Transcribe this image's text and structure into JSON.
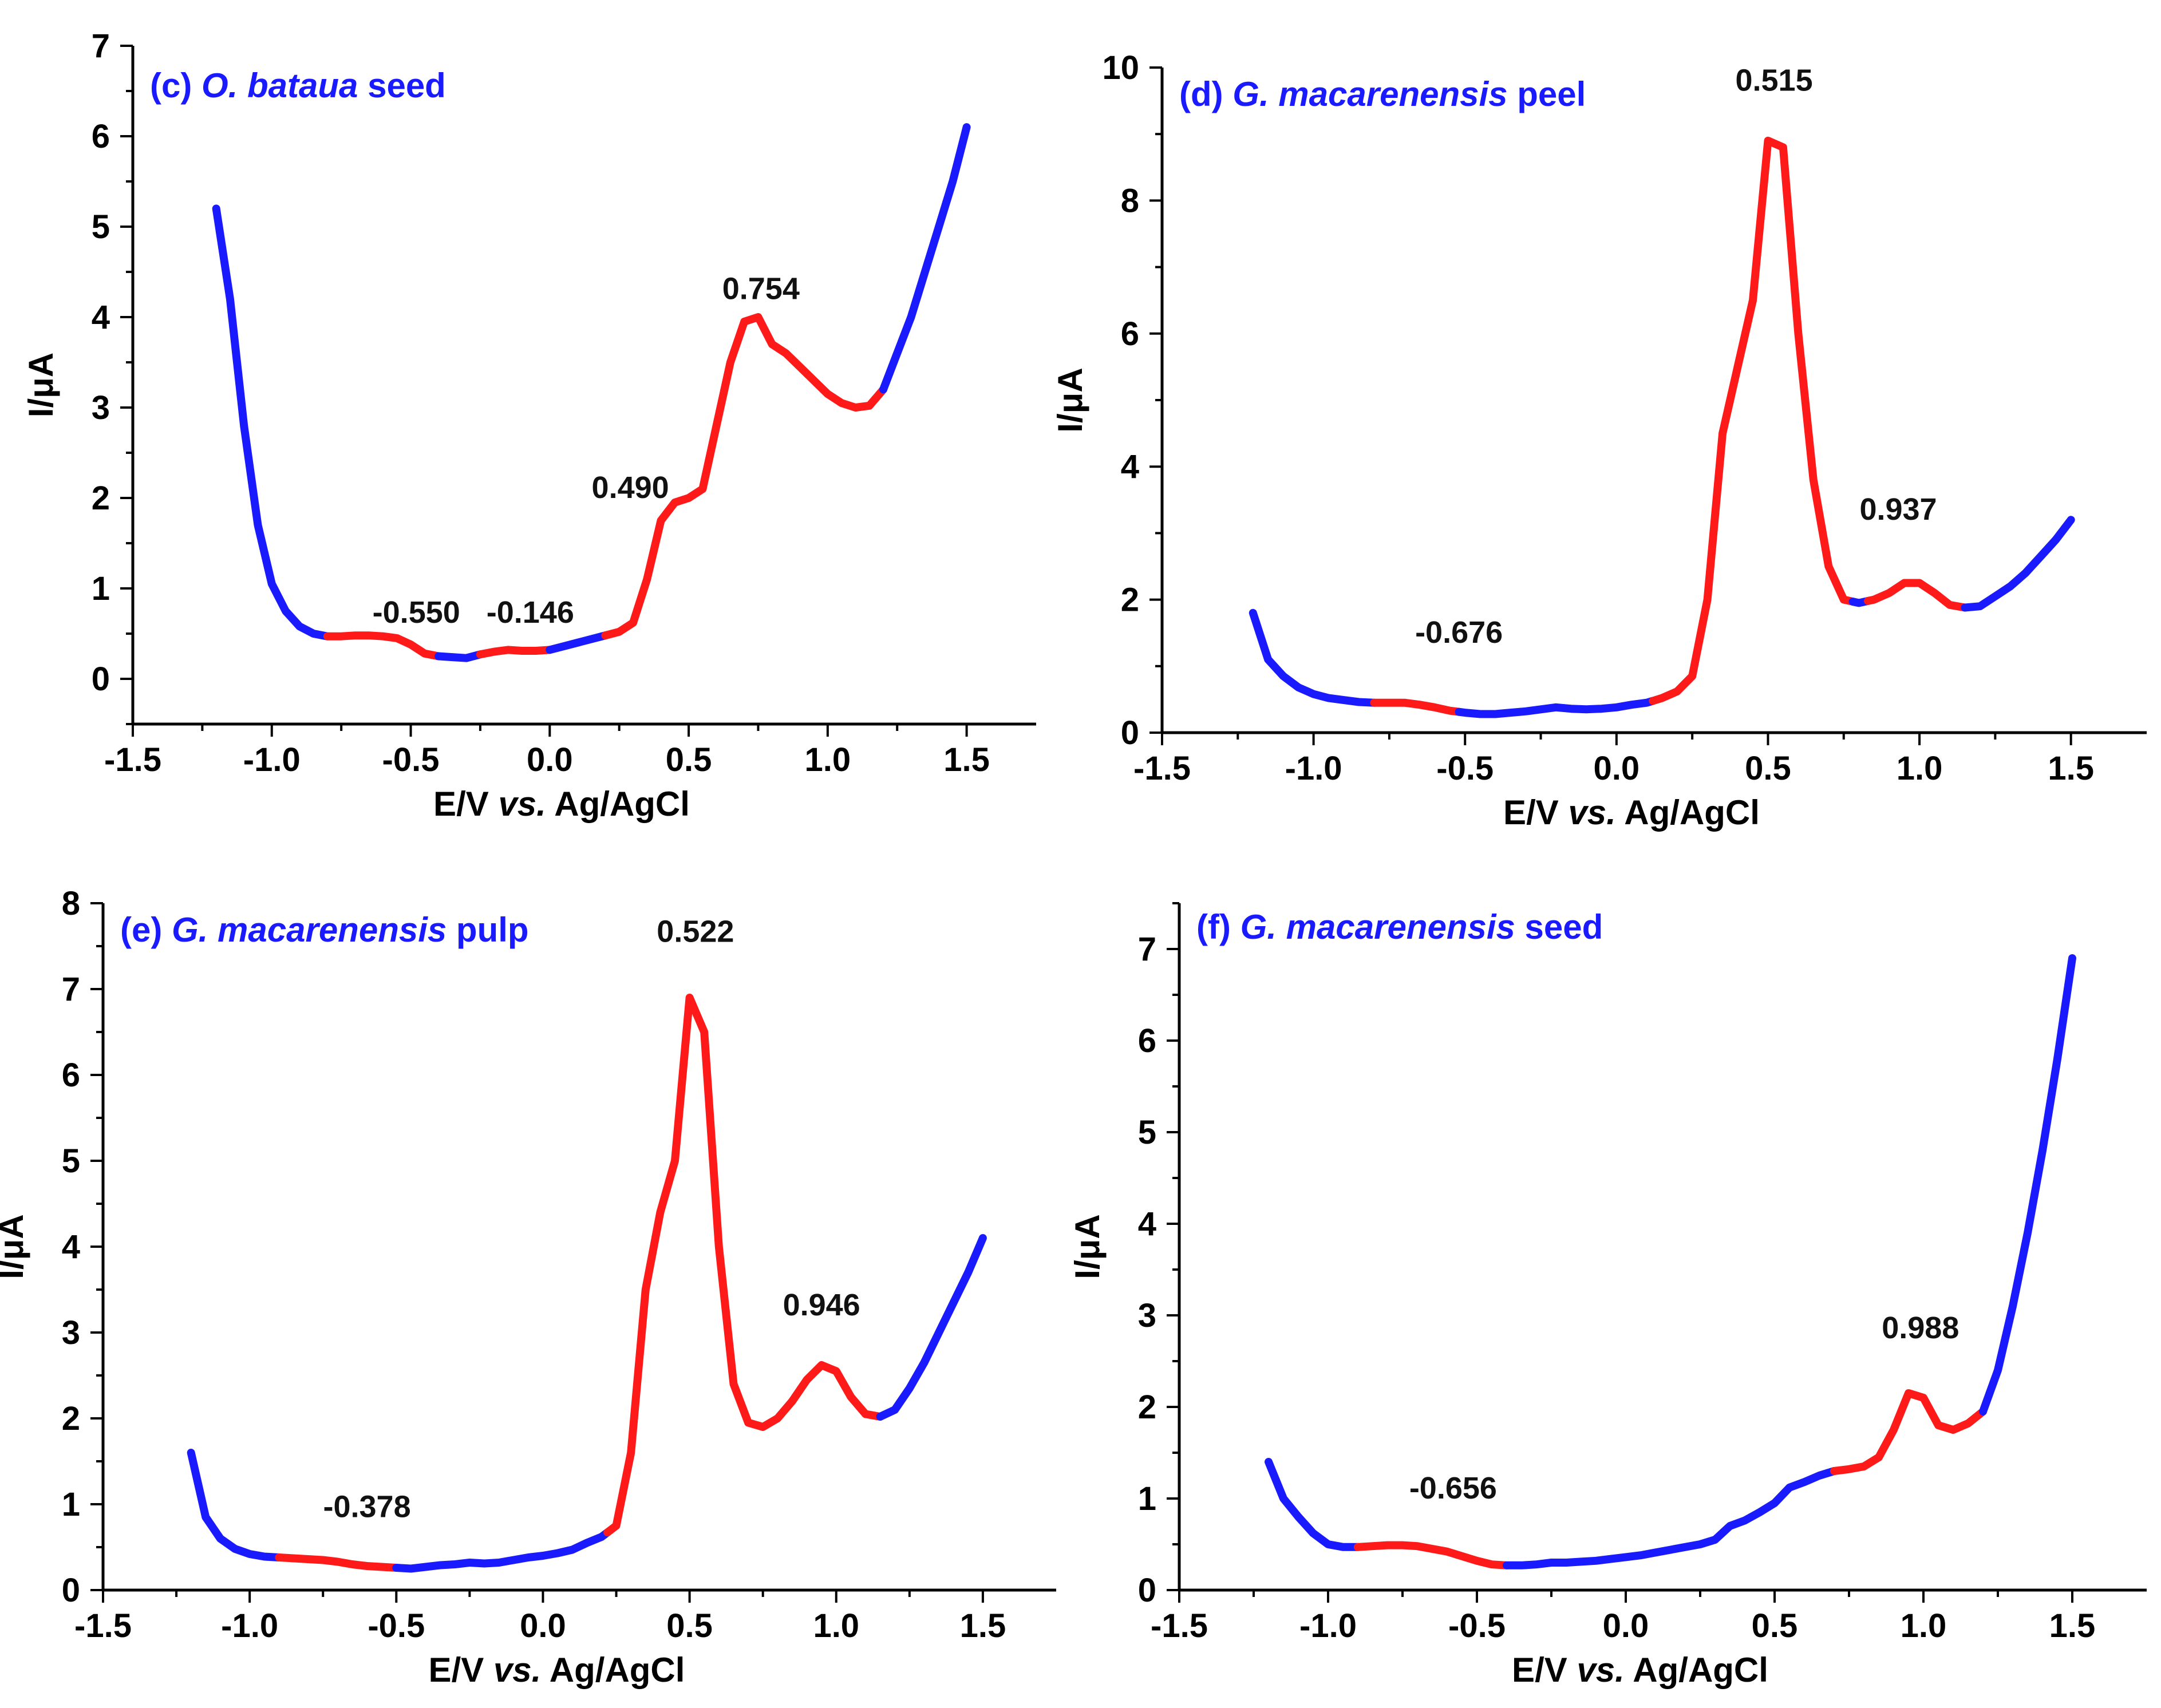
{
  "colors": {
    "blue": "#1a1aff",
    "red": "#ff1a1a",
    "axis": "#000000"
  },
  "chart_data": [
    {
      "id": "c",
      "type": "line",
      "title_prefix": "(c) ",
      "title_italic": "O. bataua",
      "title_suffix": " seed",
      "xlabel_pre": "E/V ",
      "xlabel_it": "vs.",
      "xlabel_post": " Ag/AgCl",
      "ylabel": "I/μA",
      "xlim": [
        -1.5,
        1.75
      ],
      "ylim": [
        -0.5,
        7
      ],
      "xticks": [
        -1.5,
        -1.0,
        -0.5,
        0.0,
        0.5,
        1.0,
        1.5
      ],
      "xtick_labels": [
        "-1.5",
        "-1.0",
        "-0.5",
        "0.0",
        "0.5",
        "1.0",
        "1.5"
      ],
      "yticks": [
        0,
        1,
        2,
        3,
        4,
        5,
        6,
        7
      ],
      "ytick_labels": [
        "0",
        "1",
        "2",
        "3",
        "4",
        "5",
        "6",
        "7"
      ],
      "x": [
        -1.2,
        -1.15,
        -1.1,
        -1.05,
        -1.0,
        -0.95,
        -0.9,
        -0.85,
        -0.8,
        -0.75,
        -0.7,
        -0.65,
        -0.6,
        -0.55,
        -0.5,
        -0.45,
        -0.4,
        -0.35,
        -0.3,
        -0.25,
        -0.2,
        -0.15,
        -0.1,
        -0.05,
        0.0,
        0.05,
        0.1,
        0.15,
        0.2,
        0.25,
        0.3,
        0.35,
        0.4,
        0.45,
        0.5,
        0.55,
        0.6,
        0.65,
        0.7,
        0.75,
        0.8,
        0.85,
        0.9,
        0.95,
        1.0,
        1.05,
        1.1,
        1.15,
        1.2,
        1.25,
        1.3,
        1.35,
        1.4,
        1.45,
        1.5
      ],
      "y": [
        5.2,
        4.2,
        2.8,
        1.7,
        1.05,
        0.75,
        0.58,
        0.5,
        0.47,
        0.47,
        0.48,
        0.48,
        0.47,
        0.45,
        0.38,
        0.28,
        0.25,
        0.24,
        0.23,
        0.27,
        0.3,
        0.32,
        0.31,
        0.31,
        0.32,
        0.36,
        0.4,
        0.44,
        0.48,
        0.52,
        0.62,
        1.1,
        1.75,
        1.95,
        2.0,
        2.1,
        2.8,
        3.5,
        3.95,
        4.0,
        3.7,
        3.6,
        3.45,
        3.3,
        3.15,
        3.05,
        3.0,
        3.02,
        3.2,
        3.6,
        4.0,
        4.5,
        5.0,
        5.5,
        6.1
      ],
      "segments": [
        {
          "color": "blue",
          "x_range": [
            -1.2,
            -0.8
          ]
        },
        {
          "color": "red",
          "x_range": [
            -0.8,
            -0.4
          ]
        },
        {
          "color": "blue",
          "x_range": [
            -0.4,
            -0.25
          ]
        },
        {
          "color": "red",
          "x_range": [
            -0.25,
            0.0
          ]
        },
        {
          "color": "blue",
          "x_range": [
            0.0,
            0.2
          ]
        },
        {
          "color": "red",
          "x_range": [
            0.2,
            1.2
          ]
        },
        {
          "color": "blue",
          "x_range": [
            1.2,
            1.5
          ]
        }
      ],
      "annotations": [
        {
          "text": "-0.550",
          "x": -0.48,
          "y": 0.62
        },
        {
          "text": "-0.146",
          "x": -0.07,
          "y": 0.62
        },
        {
          "text": "0.490",
          "x": 0.29,
          "y": 2.0
        },
        {
          "text": "0.754",
          "x": 0.76,
          "y": 4.2
        }
      ]
    },
    {
      "id": "d",
      "type": "line",
      "title_prefix": "(d) ",
      "title_italic": "G. macarenensis",
      "title_suffix": " peel",
      "xlabel_pre": "E/V ",
      "xlabel_it": "vs.",
      "xlabel_post": " Ag/AgCl",
      "ylabel": "I/μA",
      "xlim": [
        -1.5,
        1.75
      ],
      "ylim": [
        0,
        10
      ],
      "xticks": [
        -1.5,
        -1.0,
        -0.5,
        0.0,
        0.5,
        1.0,
        1.5
      ],
      "xtick_labels": [
        "-1.5",
        "-1.0",
        "-0.5",
        "0.0",
        "0.5",
        "1.0",
        "1.5"
      ],
      "yticks": [
        0,
        2,
        4,
        6,
        8,
        10
      ],
      "ytick_labels": [
        "0",
        "2",
        "4",
        "6",
        "8",
        "10"
      ],
      "x": [
        -1.2,
        -1.15,
        -1.1,
        -1.05,
        -1.0,
        -0.95,
        -0.9,
        -0.85,
        -0.8,
        -0.75,
        -0.7,
        -0.65,
        -0.6,
        -0.55,
        -0.5,
        -0.45,
        -0.4,
        -0.35,
        -0.3,
        -0.25,
        -0.2,
        -0.15,
        -0.1,
        -0.05,
        0.0,
        0.05,
        0.1,
        0.15,
        0.2,
        0.25,
        0.3,
        0.35,
        0.4,
        0.45,
        0.5,
        0.55,
        0.6,
        0.65,
        0.7,
        0.75,
        0.8,
        0.85,
        0.9,
        0.95,
        1.0,
        1.05,
        1.1,
        1.15,
        1.2,
        1.25,
        1.3,
        1.35,
        1.4,
        1.45,
        1.5
      ],
      "y": [
        1.8,
        1.1,
        0.85,
        0.68,
        0.58,
        0.52,
        0.49,
        0.46,
        0.45,
        0.45,
        0.45,
        0.42,
        0.38,
        0.33,
        0.3,
        0.28,
        0.28,
        0.3,
        0.32,
        0.35,
        0.38,
        0.36,
        0.35,
        0.36,
        0.38,
        0.42,
        0.45,
        0.52,
        0.62,
        0.85,
        2.0,
        4.5,
        5.5,
        6.5,
        8.9,
        8.8,
        6.0,
        3.8,
        2.5,
        2.0,
        1.95,
        2.0,
        2.1,
        2.25,
        2.25,
        2.1,
        1.92,
        1.88,
        1.9,
        2.05,
        2.2,
        2.4,
        2.65,
        2.9,
        3.2
      ],
      "segments": [
        {
          "color": "blue",
          "x_range": [
            -1.2,
            -0.8
          ]
        },
        {
          "color": "red",
          "x_range": [
            -0.8,
            -0.52
          ]
        },
        {
          "color": "blue",
          "x_range": [
            -0.52,
            0.12
          ]
        },
        {
          "color": "red",
          "x_range": [
            0.12,
            0.78
          ]
        },
        {
          "color": "blue",
          "x_range": [
            0.78,
            0.83
          ]
        },
        {
          "color": "red",
          "x_range": [
            0.83,
            1.15
          ]
        },
        {
          "color": "blue",
          "x_range": [
            1.15,
            1.5
          ]
        }
      ],
      "annotations": [
        {
          "text": "0.515",
          "x": 0.52,
          "y": 9.65
        },
        {
          "text": "0.937",
          "x": 0.93,
          "y": 3.2
        },
        {
          "text": "-0.676",
          "x": -0.52,
          "y": 1.35
        }
      ]
    },
    {
      "id": "e",
      "type": "line",
      "title_prefix": "(e) ",
      "title_italic": "G. macarenensis",
      "title_suffix": " pulp",
      "xlabel_pre": "E/V ",
      "xlabel_it": "vs.",
      "xlabel_post": " Ag/AgCl",
      "ylabel": "I/μA",
      "xlim": [
        -1.5,
        1.75
      ],
      "ylim": [
        0,
        8
      ],
      "xticks": [
        -1.5,
        -1.0,
        -0.5,
        0.0,
        0.5,
        1.0,
        1.5
      ],
      "xtick_labels": [
        "-1.5",
        "-1.0",
        "-0.5",
        "0.0",
        "0.5",
        "1.0",
        "1.5"
      ],
      "yticks": [
        0,
        1,
        2,
        3,
        4,
        5,
        6,
        7,
        8
      ],
      "ytick_labels": [
        "0",
        "1",
        "2",
        "3",
        "4",
        "5",
        "6",
        "7",
        "8"
      ],
      "x": [
        -1.2,
        -1.15,
        -1.1,
        -1.05,
        -1.0,
        -0.95,
        -0.9,
        -0.85,
        -0.8,
        -0.75,
        -0.7,
        -0.65,
        -0.6,
        -0.55,
        -0.5,
        -0.45,
        -0.4,
        -0.35,
        -0.3,
        -0.25,
        -0.2,
        -0.15,
        -0.1,
        -0.05,
        0.0,
        0.05,
        0.1,
        0.15,
        0.2,
        0.25,
        0.3,
        0.35,
        0.4,
        0.45,
        0.5,
        0.55,
        0.6,
        0.65,
        0.7,
        0.75,
        0.8,
        0.85,
        0.9,
        0.95,
        1.0,
        1.05,
        1.1,
        1.15,
        1.2,
        1.25,
        1.3,
        1.35,
        1.4,
        1.45,
        1.5
      ],
      "y": [
        1.6,
        0.85,
        0.6,
        0.48,
        0.42,
        0.39,
        0.38,
        0.37,
        0.36,
        0.35,
        0.33,
        0.3,
        0.28,
        0.27,
        0.26,
        0.25,
        0.27,
        0.29,
        0.3,
        0.32,
        0.31,
        0.32,
        0.35,
        0.38,
        0.4,
        0.43,
        0.47,
        0.55,
        0.62,
        0.75,
        1.6,
        3.5,
        4.4,
        5.0,
        6.9,
        6.5,
        4.0,
        2.4,
        1.95,
        1.9,
        2.0,
        2.2,
        2.45,
        2.62,
        2.55,
        2.25,
        2.05,
        2.02,
        2.1,
        2.35,
        2.65,
        3.0,
        3.35,
        3.7,
        4.1
      ],
      "segments": [
        {
          "color": "blue",
          "x_range": [
            -1.2,
            -0.9
          ]
        },
        {
          "color": "red",
          "x_range": [
            -0.9,
            -0.5
          ]
        },
        {
          "color": "blue",
          "x_range": [
            -0.5,
            0.22
          ]
        },
        {
          "color": "red",
          "x_range": [
            0.22,
            1.15
          ]
        },
        {
          "color": "blue",
          "x_range": [
            1.15,
            1.5
          ]
        }
      ],
      "annotations": [
        {
          "text": "0.522",
          "x": 0.52,
          "y": 7.55
        },
        {
          "text": "0.946",
          "x": 0.95,
          "y": 3.2
        },
        {
          "text": "-0.378",
          "x": -0.6,
          "y": 0.85
        }
      ]
    },
    {
      "id": "f",
      "type": "line",
      "title_prefix": "(f) ",
      "title_italic": "G. macarenensis",
      "title_suffix": " seed",
      "xlabel_pre": "E/V ",
      "xlabel_it": "vs.",
      "xlabel_post": " Ag/AgCl",
      "ylabel": "I/μA",
      "xlim": [
        -1.5,
        1.75
      ],
      "ylim": [
        0,
        7.5
      ],
      "xticks": [
        -1.5,
        -1.0,
        -0.5,
        0.0,
        0.5,
        1.0,
        1.5
      ],
      "xtick_labels": [
        "-1.5",
        "-1.0",
        "-0.5",
        "0.0",
        "0.5",
        "1.0",
        "1.5"
      ],
      "yticks": [
        0,
        1,
        2,
        3,
        4,
        5,
        6,
        7
      ],
      "ytick_labels": [
        "0",
        "1",
        "2",
        "3",
        "4",
        "5",
        "6",
        "7"
      ],
      "x": [
        -1.2,
        -1.15,
        -1.1,
        -1.05,
        -1.0,
        -0.95,
        -0.9,
        -0.85,
        -0.8,
        -0.75,
        -0.7,
        -0.65,
        -0.6,
        -0.55,
        -0.5,
        -0.45,
        -0.4,
        -0.35,
        -0.3,
        -0.25,
        -0.2,
        -0.15,
        -0.1,
        -0.05,
        0.0,
        0.05,
        0.1,
        0.15,
        0.2,
        0.25,
        0.3,
        0.35,
        0.4,
        0.45,
        0.5,
        0.55,
        0.6,
        0.65,
        0.7,
        0.75,
        0.8,
        0.85,
        0.9,
        0.95,
        1.0,
        1.05,
        1.1,
        1.15,
        1.2,
        1.25,
        1.3,
        1.35,
        1.4,
        1.45,
        1.5
      ],
      "y": [
        1.4,
        1.0,
        0.8,
        0.62,
        0.5,
        0.47,
        0.47,
        0.48,
        0.49,
        0.49,
        0.48,
        0.45,
        0.42,
        0.37,
        0.32,
        0.28,
        0.27,
        0.27,
        0.28,
        0.3,
        0.3,
        0.31,
        0.32,
        0.34,
        0.36,
        0.38,
        0.41,
        0.44,
        0.47,
        0.5,
        0.55,
        0.7,
        0.76,
        0.85,
        0.95,
        1.12,
        1.18,
        1.25,
        1.3,
        1.32,
        1.35,
        1.45,
        1.75,
        2.15,
        2.1,
        1.8,
        1.75,
        1.82,
        1.95,
        2.4,
        3.1,
        3.9,
        4.8,
        5.8,
        6.9
      ],
      "segments": [
        {
          "color": "blue",
          "x_range": [
            -1.2,
            -0.9
          ]
        },
        {
          "color": "red",
          "x_range": [
            -0.9,
            -0.4
          ]
        },
        {
          "color": "blue",
          "x_range": [
            -0.4,
            0.7
          ]
        },
        {
          "color": "red",
          "x_range": [
            0.7,
            1.2
          ]
        },
        {
          "color": "blue",
          "x_range": [
            1.2,
            1.5
          ]
        }
      ],
      "annotations": [
        {
          "text": "0.988",
          "x": 0.99,
          "y": 2.75
        },
        {
          "text": "-0.656",
          "x": -0.58,
          "y": 1.0
        }
      ]
    }
  ]
}
